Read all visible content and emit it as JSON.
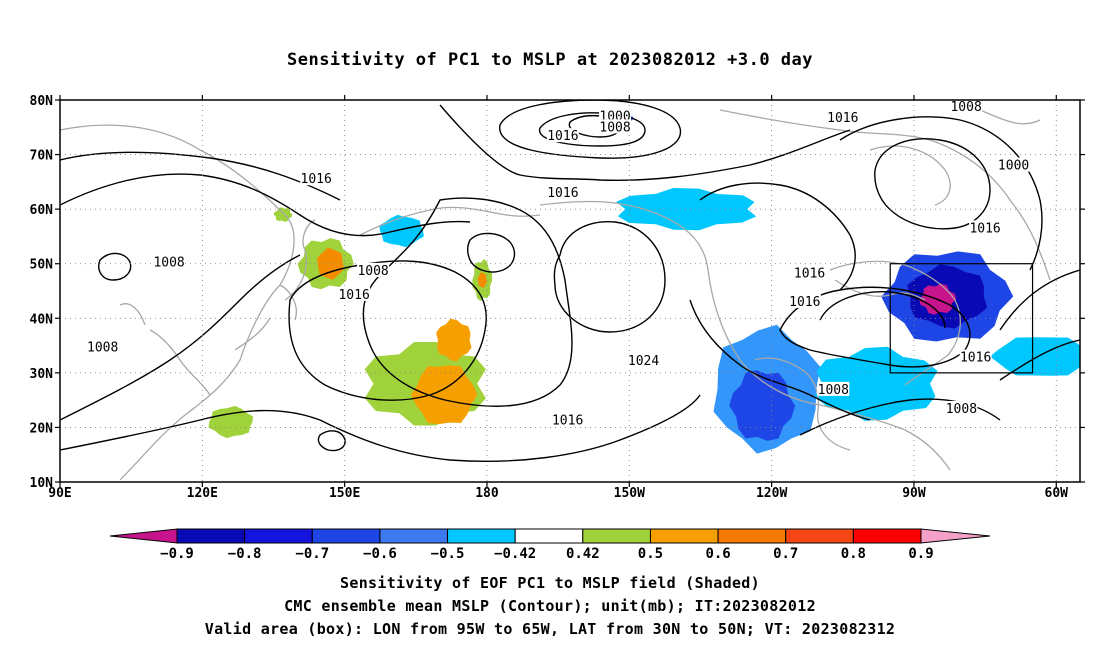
{
  "title": "Sensitivity of PC1 to MSLP at 2023082012 +3.0 day",
  "map": {
    "lon_range": [
      90,
      305
    ],
    "lat_range": [
      10,
      80
    ],
    "lat_ticks": [
      {
        "value": 80,
        "label": "80N"
      },
      {
        "value": 70,
        "label": "70N"
      },
      {
        "value": 60,
        "label": "60N"
      },
      {
        "value": 50,
        "label": "50N"
      },
      {
        "value": 40,
        "label": "40N"
      },
      {
        "value": 30,
        "label": "30N"
      },
      {
        "value": 20,
        "label": "20N"
      },
      {
        "value": 10,
        "label": "10N"
      }
    ],
    "lon_ticks": [
      {
        "value": 90,
        "label": "90E"
      },
      {
        "value": 120,
        "label": "120E"
      },
      {
        "value": 150,
        "label": "150E"
      },
      {
        "value": 180,
        "label": "180"
      },
      {
        "value": 210,
        "label": "150W"
      },
      {
        "value": 240,
        "label": "120W"
      },
      {
        "value": 270,
        "label": "90W"
      },
      {
        "value": 300,
        "label": "60W"
      }
    ],
    "grid": "dotted",
    "valid_box": {
      "lon_min": 265,
      "lon_max": 295,
      "lat_min": 30,
      "lat_max": 50
    },
    "colors": {
      "coastline": "#a8a8a8",
      "contour": "#000000",
      "box": "#000000"
    },
    "contour_labels": [
      {
        "text": "1000",
        "lon": 207,
        "lat": 76.8
      },
      {
        "text": "1008",
        "lon": 207,
        "lat": 74.8
      },
      {
        "text": "1016",
        "lon": 196,
        "lat": 73.2
      },
      {
        "text": "1016",
        "lon": 255,
        "lat": 76.5
      },
      {
        "text": "1008",
        "lon": 281,
        "lat": 78.5
      },
      {
        "text": "1000",
        "lon": 291,
        "lat": 67.8
      },
      {
        "text": "1016",
        "lon": 144,
        "lat": 65.3
      },
      {
        "text": "1016",
        "lon": 196,
        "lat": 62.8
      },
      {
        "text": "1016",
        "lon": 285,
        "lat": 56.3
      },
      {
        "text": "1008",
        "lon": 113,
        "lat": 50.0
      },
      {
        "text": "1008",
        "lon": 156,
        "lat": 48.5
      },
      {
        "text": "1016",
        "lon": 152,
        "lat": 44.1
      },
      {
        "text": "1016",
        "lon": 248,
        "lat": 48.0
      },
      {
        "text": "1016",
        "lon": 247,
        "lat": 42.8
      },
      {
        "text": "1008",
        "lon": 99,
        "lat": 34.5
      },
      {
        "text": "1024",
        "lon": 213,
        "lat": 32.0
      },
      {
        "text": "1016",
        "lon": 283,
        "lat": 32.6
      },
      {
        "text": "1008",
        "lon": 253,
        "lat": 26.7
      },
      {
        "text": "1008",
        "lon": 280,
        "lat": 23.2
      },
      {
        "text": "1016",
        "lon": 197,
        "lat": 21.1
      }
    ]
  },
  "shading": {
    "regions": [
      {
        "name": "green-nw-pacific",
        "color": "#a0d23c",
        "lon": 167,
        "lat": 28,
        "rlon": 14,
        "rlat": 8
      },
      {
        "name": "orange-nw-pacific",
        "color": "#f5a000",
        "lon": 171,
        "lat": 26,
        "rlon": 7,
        "rlat": 6
      },
      {
        "name": "orange-nw-pacific-upper",
        "color": "#f5a000",
        "lon": 173,
        "lat": 36,
        "rlon": 4,
        "rlat": 4
      },
      {
        "name": "green-japan",
        "color": "#a0d23c",
        "lon": 146,
        "lat": 50,
        "rlon": 6,
        "rlat": 5
      },
      {
        "name": "orange-japan",
        "color": "#f58c00",
        "lon": 147,
        "lat": 50,
        "rlon": 3,
        "rlat": 3
      },
      {
        "name": "green-aleutian",
        "color": "#a0d23c",
        "lon": 179,
        "lat": 47,
        "rlon": 2.2,
        "rlat": 4
      },
      {
        "name": "orange-aleutian",
        "color": "#f58c00",
        "lon": 179,
        "lat": 47,
        "rlon": 1,
        "rlat": 1.5
      },
      {
        "name": "green-south-china-sea",
        "color": "#a0d23c",
        "lon": 126,
        "lat": 21,
        "rlon": 5,
        "rlat": 3
      },
      {
        "name": "green-siberia",
        "color": "#a0d23c",
        "lon": 137,
        "lat": 59,
        "rlon": 2,
        "rlat": 1.4
      },
      {
        "name": "blue-east-pacific",
        "color": "#3296fa",
        "lon": 239,
        "lat": 27,
        "rlon": 12,
        "rlat": 12
      },
      {
        "name": "darkblue-east-pacific",
        "color": "#1e46e6",
        "lon": 238,
        "lat": 24,
        "rlon": 7,
        "rlat": 7
      },
      {
        "name": "cyan-gulf",
        "color": "#00c8ff",
        "lon": 262,
        "lat": 28,
        "rlon": 14,
        "rlat": 7
      },
      {
        "name": "cyan-atlantic",
        "color": "#00c8ff",
        "lon": 297,
        "lat": 33,
        "rlon": 11,
        "rlat": 4
      },
      {
        "name": "cyan-north-pacific",
        "color": "#00c8ff",
        "lon": 222,
        "lat": 60,
        "rlon": 16,
        "rlat": 4
      },
      {
        "name": "blue-great-lakes",
        "color": "#1e46e6",
        "lon": 277,
        "lat": 44,
        "rlon": 14,
        "rlat": 9
      },
      {
        "name": "navy-great-lakes",
        "color": "#0a0ab4",
        "lon": 277,
        "lat": 44,
        "rlon": 9,
        "rlat": 6
      },
      {
        "name": "magenta-great-lakes",
        "color": "#c8148c",
        "lon": 275,
        "lat": 43.5,
        "rlon": 4,
        "rlat": 3
      },
      {
        "name": "cyan-bering",
        "color": "#00c8ff",
        "lon": 162,
        "lat": 56,
        "rlon": 5,
        "rlat": 3
      },
      {
        "name": "blue-arctic",
        "color": "#1e46e6",
        "lon": 208,
        "lat": 76.5,
        "rlon": 3,
        "rlat": 1.2
      }
    ]
  },
  "colorbar": {
    "segments": [
      {
        "color": "#0a0ab4"
      },
      {
        "color": "#1414dc"
      },
      {
        "color": "#1e46e6"
      },
      {
        "color": "#3c78f0"
      },
      {
        "color": "#00c8ff"
      },
      {
        "color": "#ffffff"
      },
      {
        "color": "#a0d23c"
      },
      {
        "color": "#f5a000"
      },
      {
        "color": "#f57800"
      },
      {
        "color": "#f54614"
      },
      {
        "color": "#fa0000"
      }
    ],
    "low_extend_color": "#c8148c",
    "high_extend_color": "#f5a0c8",
    "tick_labels": [
      "−0.9",
      "−0.8",
      "−0.7",
      "−0.6",
      "−0.5",
      "−0.42",
      "0.42",
      "0.5",
      "0.6",
      "0.7",
      "0.8",
      "0.9"
    ]
  },
  "captions": {
    "line1": "Sensitivity of EOF PC1 to MSLP field (Shaded)",
    "line2": "CMC ensemble mean MSLP (Contour); unit(mb); IT:2023082012",
    "line3": "Valid area (box): LON from 95W to 65W, LAT from 30N to 50N; VT: 2023082312"
  }
}
